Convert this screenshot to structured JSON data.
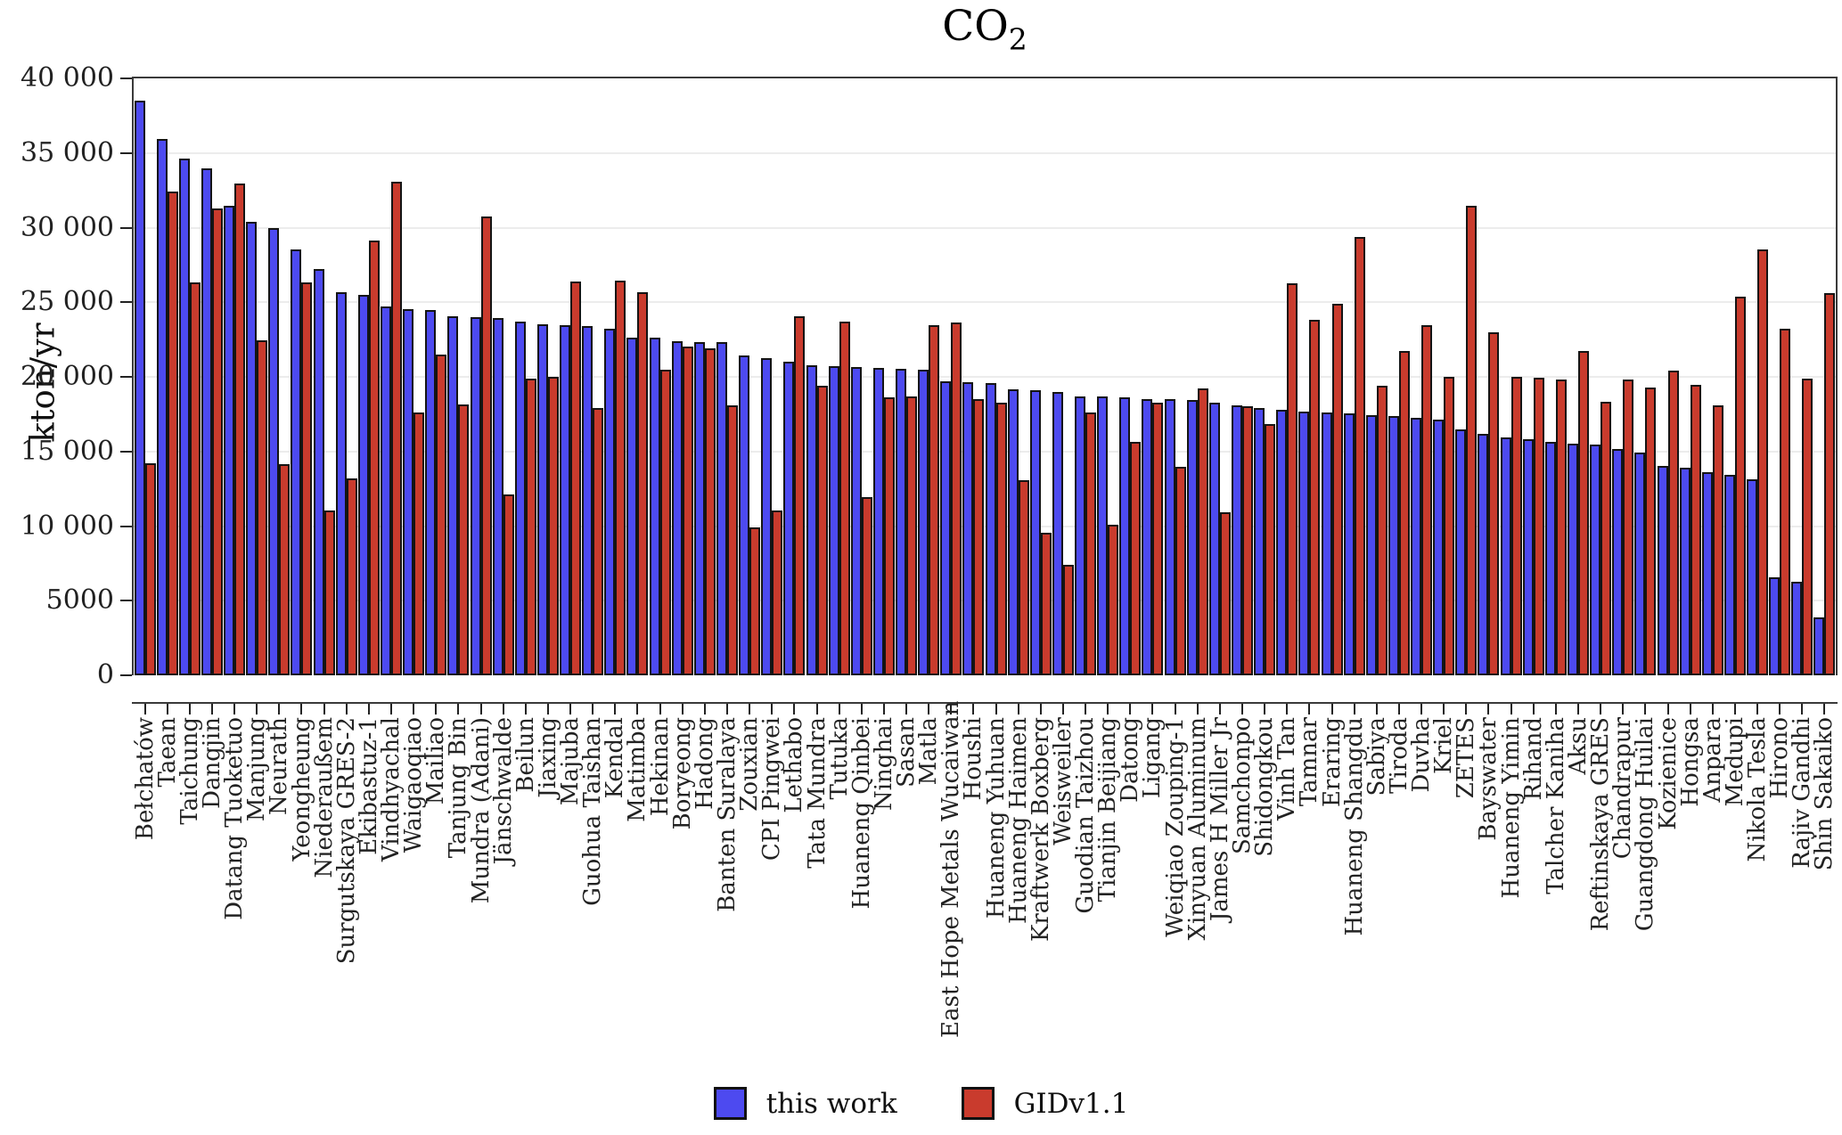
{
  "figure": {
    "title_main": "CO",
    "title_sub": "2",
    "ylabel": "kton/yr"
  },
  "chart_data": {
    "type": "bar",
    "title": "CO₂",
    "xlabel": "",
    "ylabel": "kton/yr",
    "ylim": [
      0,
      40000
    ],
    "ytick_step": 5000,
    "yticks": [
      {
        "value": 0,
        "label": "0"
      },
      {
        "value": 5000,
        "label": "5000"
      },
      {
        "value": 10000,
        "label": "10 000"
      },
      {
        "value": 15000,
        "label": "15 000"
      },
      {
        "value": 20000,
        "label": "20 000"
      },
      {
        "value": 25000,
        "label": "25 000"
      },
      {
        "value": 30000,
        "label": "30 000"
      },
      {
        "value": 35000,
        "label": "35 000"
      },
      {
        "value": 40000,
        "label": "40 000"
      }
    ],
    "grid": "horizontal",
    "legend_position": "bottom-center",
    "categories": [
      "Bełchatów",
      "Taean",
      "Taichung",
      "Dangjin",
      "Datang Tuoketuo",
      "Manjung",
      "Neurath",
      "Yeongheung",
      "Niederaußem",
      "Surgutskaya GRES-2",
      "Ekibastuz-1",
      "Vindhyachal",
      "Waigaoqiao",
      "Mailiao",
      "Tanjung Bin",
      "Mundra (Adani)",
      "Jänschwalde",
      "Beilun",
      "Jiaxing",
      "Majuba",
      "Guohua Taishan",
      "Kendal",
      "Matimba",
      "Hekinan",
      "Boryeong",
      "Hadong",
      "Banten Suralaya",
      "Zouxian",
      "CPI Pingwei",
      "Lethabo",
      "Tata Mundra",
      "Tutuka",
      "Huaneng Qinbei",
      "Ninghai",
      "Sasan",
      "Matla",
      "East Hope Metals Wucaiwan",
      "Houshi",
      "Huaneng Yuhuan",
      "Huaneng Haimen",
      "Kraftwerk Boxberg",
      "Weisweiler",
      "Guodian Taizhou",
      "Tianjin Beijiang",
      "Datong",
      "Ligang",
      "Weiqiao Zouping-1",
      "Xinyuan Aluminum",
      "James H Miller Jr",
      "Samchonpo",
      "Shidongkou",
      "Vinh Tan",
      "Tamnar",
      "Eraring",
      "Huaneng Shangdu",
      "Sabiya",
      "Tiroda",
      "Duvha",
      "Kriel",
      "ZETES",
      "Bayswater",
      "Huaneng Yimin",
      "Rihand",
      "Talcher Kaniha",
      "Aksu",
      "Reftinskaya GRES",
      "Chandrapur",
      "Guangdong Huilai",
      "Kozienice",
      "Hongsa",
      "Anpara",
      "Medupi",
      "Nikola Tesla",
      "Hirono",
      "Rajiv Gandhi",
      "Shin Sakaiko"
    ],
    "series": [
      {
        "name": "this work",
        "color": "#4d4af0",
        "values": [
          38500,
          35950,
          34650,
          33950,
          31450,
          30400,
          29950,
          28550,
          27200,
          25650,
          25500,
          24700,
          24550,
          24500,
          24050,
          24000,
          23950,
          23700,
          23550,
          23450,
          23400,
          23250,
          22650,
          22600,
          22400,
          22350,
          22300,
          21450,
          21250,
          21000,
          20800,
          20700,
          20650,
          20600,
          20550,
          20450,
          19700,
          19650,
          19600,
          19150,
          19100,
          19000,
          18700,
          18700,
          18600,
          18500,
          18500,
          18450,
          18250,
          18100,
          17900,
          17800,
          17700,
          17600,
          17550,
          17450,
          17350,
          17250,
          17150,
          16500,
          16150,
          15950,
          15850,
          15650,
          15500,
          15450,
          15150,
          14900,
          14050,
          13900,
          13600,
          13450,
          13150,
          6550,
          6250,
          3900
        ]
      },
      {
        "name": "GIDv1.1",
        "color": "#c93b2d",
        "values": [
          14200,
          32400,
          26350,
          31300,
          32950,
          22450,
          14150,
          26350,
          11050,
          13200,
          29150,
          33050,
          17600,
          21500,
          18150,
          30750,
          12100,
          19900,
          20000,
          26400,
          17900,
          26450,
          25700,
          20500,
          22000,
          21900,
          18100,
          9900,
          11050,
          24050,
          19400,
          23700,
          11950,
          18650,
          18700,
          23450,
          23650,
          18500,
          18250,
          13100,
          9550,
          7400,
          17600,
          10100,
          15650,
          18250,
          14000,
          19200,
          10900,
          18000,
          16850,
          26250,
          23850,
          24900,
          29400,
          19400,
          21750,
          23450,
          20000,
          31450,
          23000,
          20000,
          19950,
          19800,
          21750,
          18300,
          19850,
          19300,
          20400,
          19450,
          18100,
          25350,
          28550,
          23200,
          19900,
          25600
        ]
      }
    ]
  }
}
